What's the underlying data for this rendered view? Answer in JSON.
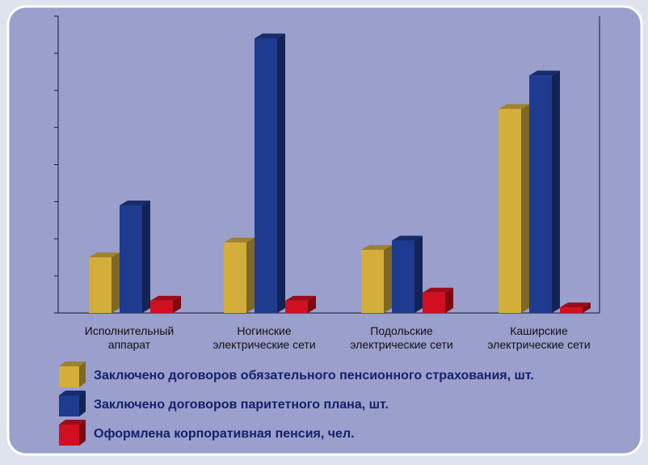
{
  "chart_data": {
    "type": "bar3d",
    "categories": [
      "Исполнительный аппарат",
      "Ногинские электрические сети",
      "Подольские электрические сети",
      "Каширские электрические сети"
    ],
    "series": [
      {
        "name": "Заключено договоров обязательного пенсионного страхования, шт.",
        "color": "#d4ae3a",
        "values": [
          1.5,
          1.9,
          1.7,
          5.5
        ]
      },
      {
        "name": "Заключено договоров паритетного плана, шт.",
        "color": "#1f3b8f",
        "values": [
          2.9,
          7.4,
          1.95,
          6.4
        ]
      },
      {
        "name": "Оформлена корпоративная пенсия, чел.",
        "color": "#d01020",
        "values": [
          0.33,
          0.33,
          0.55,
          0.15
        ]
      }
    ],
    "ylim": [
      0,
      8
    ],
    "yticks": [
      0,
      1,
      2,
      3,
      4,
      5,
      6,
      7,
      8
    ]
  }
}
